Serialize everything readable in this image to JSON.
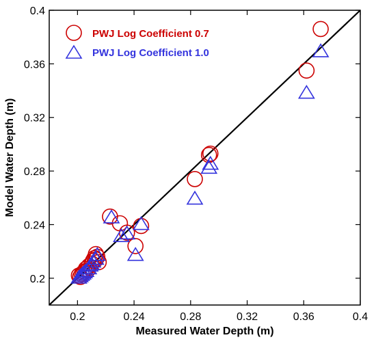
{
  "chart_data": {
    "type": "scatter",
    "title": "",
    "xlabel": "Measured Water Depth (m)",
    "ylabel": "Model Water Depth (m)",
    "xlim": [
      0.18,
      0.4
    ],
    "ylim": [
      0.18,
      0.4
    ],
    "x_ticks": [
      "0.2",
      "0.24",
      "0.28",
      "0.32",
      "0.36",
      "0.4"
    ],
    "y_ticks": [
      "0.2",
      "0.24",
      "0.28",
      "0.32",
      "0.36",
      "0.4"
    ],
    "x_tick_values": [
      0.2,
      0.24,
      0.28,
      0.32,
      0.36,
      0.4
    ],
    "y_tick_values": [
      0.2,
      0.24,
      0.28,
      0.32,
      0.36,
      0.4
    ],
    "grid": false,
    "legend_position": "top-left",
    "reference_line": {
      "type": "y=x",
      "color": "#000000"
    },
    "series": [
      {
        "name": "PWJ Log Coefficient 0.7",
        "marker": "circle",
        "color": "#cc0000",
        "points": [
          [
            0.201,
            0.202
          ],
          [
            0.202,
            0.201
          ],
          [
            0.203,
            0.203
          ],
          [
            0.204,
            0.204
          ],
          [
            0.205,
            0.205
          ],
          [
            0.206,
            0.207
          ],
          [
            0.207,
            0.206
          ],
          [
            0.208,
            0.209
          ],
          [
            0.21,
            0.211
          ],
          [
            0.211,
            0.213
          ],
          [
            0.212,
            0.215
          ],
          [
            0.213,
            0.214
          ],
          [
            0.214,
            0.216
          ],
          [
            0.213,
            0.218
          ],
          [
            0.215,
            0.212
          ],
          [
            0.223,
            0.246
          ],
          [
            0.23,
            0.241
          ],
          [
            0.235,
            0.234
          ],
          [
            0.241,
            0.224
          ],
          [
            0.245,
            0.239
          ],
          [
            0.283,
            0.274
          ],
          [
            0.293,
            0.292
          ],
          [
            0.294,
            0.293
          ],
          [
            0.362,
            0.355
          ],
          [
            0.372,
            0.386
          ]
        ]
      },
      {
        "name": "PWJ Log Coefficient 1.0",
        "marker": "triangle",
        "color": "#3333dd",
        "points": [
          [
            0.201,
            0.2
          ],
          [
            0.202,
            0.201
          ],
          [
            0.203,
            0.202
          ],
          [
            0.204,
            0.203
          ],
          [
            0.205,
            0.204
          ],
          [
            0.206,
            0.205
          ],
          [
            0.208,
            0.207
          ],
          [
            0.209,
            0.209
          ],
          [
            0.21,
            0.21
          ],
          [
            0.211,
            0.212
          ],
          [
            0.213,
            0.214
          ],
          [
            0.214,
            0.217
          ],
          [
            0.224,
            0.245
          ],
          [
            0.231,
            0.231
          ],
          [
            0.235,
            0.233
          ],
          [
            0.241,
            0.217
          ],
          [
            0.245,
            0.24
          ],
          [
            0.283,
            0.259
          ],
          [
            0.293,
            0.282
          ],
          [
            0.294,
            0.285
          ],
          [
            0.362,
            0.338
          ],
          [
            0.372,
            0.369
          ]
        ]
      }
    ]
  }
}
